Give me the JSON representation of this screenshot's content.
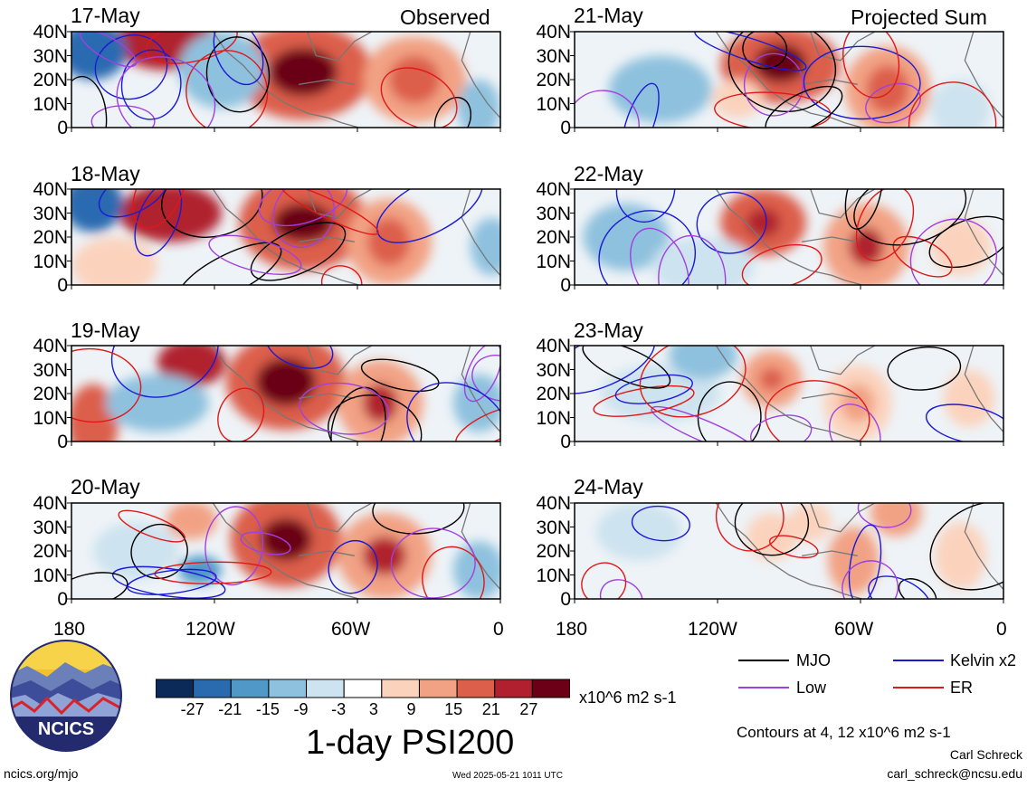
{
  "panels": {
    "observed": [
      {
        "date": "17-May",
        "tag": "Observed"
      },
      {
        "date": "18-May",
        "tag": ""
      },
      {
        "date": "19-May",
        "tag": ""
      },
      {
        "date": "20-May",
        "tag": ""
      }
    ],
    "projected": [
      {
        "date": "21-May",
        "tag": "Projected Sum"
      },
      {
        "date": "22-May",
        "tag": ""
      },
      {
        "date": "23-May",
        "tag": ""
      },
      {
        "date": "24-May",
        "tag": ""
      }
    ]
  },
  "axes": {
    "lat_labels": [
      "40N",
      "30N",
      "20N",
      "10N",
      "0"
    ],
    "lon_labels": [
      "180",
      "120W",
      "60W",
      "0"
    ]
  },
  "colorbar": {
    "labels": [
      "-27",
      "-21",
      "-15",
      "-9",
      "-3",
      "3",
      "9",
      "15",
      "21",
      "27"
    ],
    "units": "x10^6 m2 s-1",
    "colors": [
      "#0b2a57",
      "#2a6bb0",
      "#4f98c8",
      "#8ec1de",
      "#cde3ef",
      "#ffffff",
      "#fbd3bd",
      "#f2a284",
      "#dc5f4b",
      "#b0202e",
      "#6b0016"
    ]
  },
  "title": "1-day PSI200",
  "legend": {
    "items": [
      {
        "label": "MJO",
        "color": "#000000"
      },
      {
        "label": "Kelvin x2",
        "color": "#1a1ad6"
      },
      {
        "label": "Low",
        "color": "#a040e0"
      },
      {
        "label": "ER",
        "color": "#e01818"
      }
    ],
    "note": "Contours at 4, 12 x10^6 m2 s-1"
  },
  "credits": {
    "logo_text": "NCICS",
    "site": "ncics.org/mjo",
    "timestamp": "Wed 2025-05-21 1011 UTC",
    "author": "Carl Schreck",
    "email": "carl_schreck@ncsu.edu"
  }
}
